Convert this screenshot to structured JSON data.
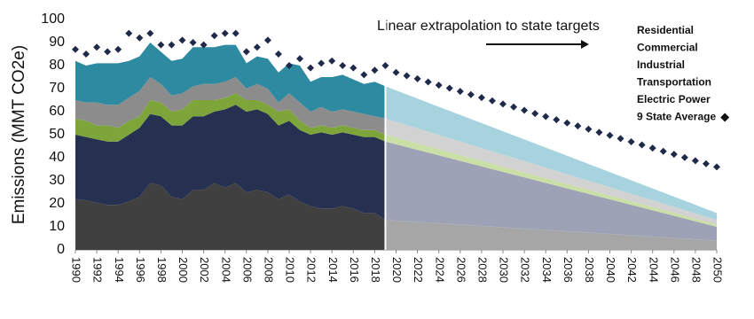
{
  "chart_data": {
    "type": "stacked_area",
    "y_label": "Emissions (MMT CO2e)",
    "annotation": "Linear extrapolation to state targets",
    "xlim": [
      1990,
      2050
    ],
    "ylim": [
      0,
      100
    ],
    "yticks": [
      0,
      10,
      20,
      30,
      40,
      50,
      60,
      70,
      80,
      90,
      100
    ],
    "xticks": [
      1990,
      1992,
      1994,
      1996,
      1998,
      2000,
      2002,
      2004,
      2006,
      2008,
      2010,
      2012,
      2014,
      2016,
      2018,
      2020,
      2022,
      2024,
      2026,
      2028,
      2030,
      2032,
      2034,
      2036,
      2038,
      2040,
      2042,
      2044,
      2046,
      2048,
      2050
    ],
    "extrapolated_from": 2019,
    "x": [
      1990,
      1991,
      1992,
      1993,
      1994,
      1995,
      1996,
      1997,
      1998,
      1999,
      2000,
      2001,
      2002,
      2003,
      2004,
      2005,
      2006,
      2007,
      2008,
      2009,
      2010,
      2011,
      2012,
      2013,
      2014,
      2015,
      2016,
      2017,
      2018,
      2019,
      2050
    ],
    "series": [
      {
        "name": "Electric Power",
        "color": "#404040",
        "projection_color": "#a6a6a6",
        "label_color": "#666666",
        "values": [
          22,
          21.5,
          20.5,
          19.5,
          19.5,
          21,
          23,
          29,
          28,
          23,
          22,
          26,
          26,
          29,
          27,
          29,
          25,
          26,
          25,
          22,
          24,
          21,
          19,
          18,
          18,
          19,
          18,
          16,
          16,
          13,
          4
        ]
      },
      {
        "name": "Transportation",
        "color": "#263050",
        "projection_color": "#9ea2b6",
        "label_color": "#2e3c64",
        "values": [
          28,
          27.5,
          27.5,
          27.5,
          27.5,
          29,
          30,
          30,
          30,
          31,
          32,
          32,
          32,
          31,
          34,
          34,
          35,
          35,
          34,
          32,
          32,
          31,
          31,
          33,
          32,
          32,
          32,
          33,
          33,
          34,
          6
        ]
      },
      {
        "name": "Industrial",
        "color": "#7ea53a",
        "projection_color": "#cadfa6",
        "label_color": "#7ea53a",
        "values": [
          7,
          7,
          6,
          7,
          6,
          6,
          5,
          6,
          6,
          6,
          7,
          7,
          7,
          5,
          5,
          5,
          5,
          4,
          4,
          6,
          5,
          4,
          3,
          3,
          3,
          3,
          3,
          3,
          3,
          3,
          1
        ]
      },
      {
        "name": "Commercial",
        "color": "#8c8c8c",
        "projection_color": "#d2d2d2",
        "label_color": "#8c8c8c",
        "values": [
          8,
          8,
          10,
          9,
          10,
          10,
          11,
          10,
          8,
          7,
          7,
          6,
          7,
          7,
          7,
          7,
          5,
          7,
          7,
          4,
          7,
          8,
          7,
          8,
          7,
          7,
          7,
          7,
          6,
          7,
          2
        ]
      },
      {
        "name": "Residential",
        "color": "#2e8aa0",
        "projection_color": "#a7d3de",
        "label_color": "#2e8aa0",
        "values": [
          17,
          16,
          17,
          18,
          18,
          16,
          15,
          15,
          14,
          15,
          15,
          17,
          16,
          16,
          16,
          14,
          11,
          12,
          13,
          13,
          13,
          16,
          13,
          13,
          15,
          15,
          14,
          13,
          15,
          14,
          3
        ]
      }
    ],
    "average": {
      "name": "9 State Average",
      "color": "#1f2a4a",
      "x": [
        1990,
        1991,
        1992,
        1993,
        1994,
        1995,
        1996,
        1997,
        1998,
        1999,
        2000,
        2001,
        2002,
        2003,
        2004,
        2005,
        2006,
        2007,
        2008,
        2009,
        2010,
        2011,
        2012,
        2013,
        2014,
        2015,
        2016,
        2017,
        2018,
        2019,
        2020,
        2021,
        2022,
        2023,
        2024,
        2025,
        2026,
        2027,
        2028,
        2029,
        2030,
        2031,
        2032,
        2033,
        2034,
        2035,
        2036,
        2037,
        2038,
        2039,
        2040,
        2041,
        2042,
        2043,
        2044,
        2045,
        2046,
        2047,
        2048,
        2049,
        2050
      ],
      "values": [
        87,
        85,
        88,
        86,
        87,
        94,
        92,
        94,
        89,
        89,
        91,
        90,
        89,
        93,
        94,
        94,
        86,
        88,
        91,
        85,
        80,
        83,
        79,
        81,
        82,
        80,
        79,
        76,
        78,
        80,
        77,
        75.6,
        74.3,
        72.9,
        71.5,
        70.2,
        68.8,
        67.4,
        66.1,
        64.7,
        63.3,
        62,
        60.6,
        59.2,
        57.9,
        56.5,
        55.1,
        53.8,
        52.4,
        51,
        49.7,
        48.3,
        46.9,
        45.6,
        44.2,
        42.8,
        41.5,
        40.1,
        38.7,
        37.4,
        36
      ]
    }
  }
}
